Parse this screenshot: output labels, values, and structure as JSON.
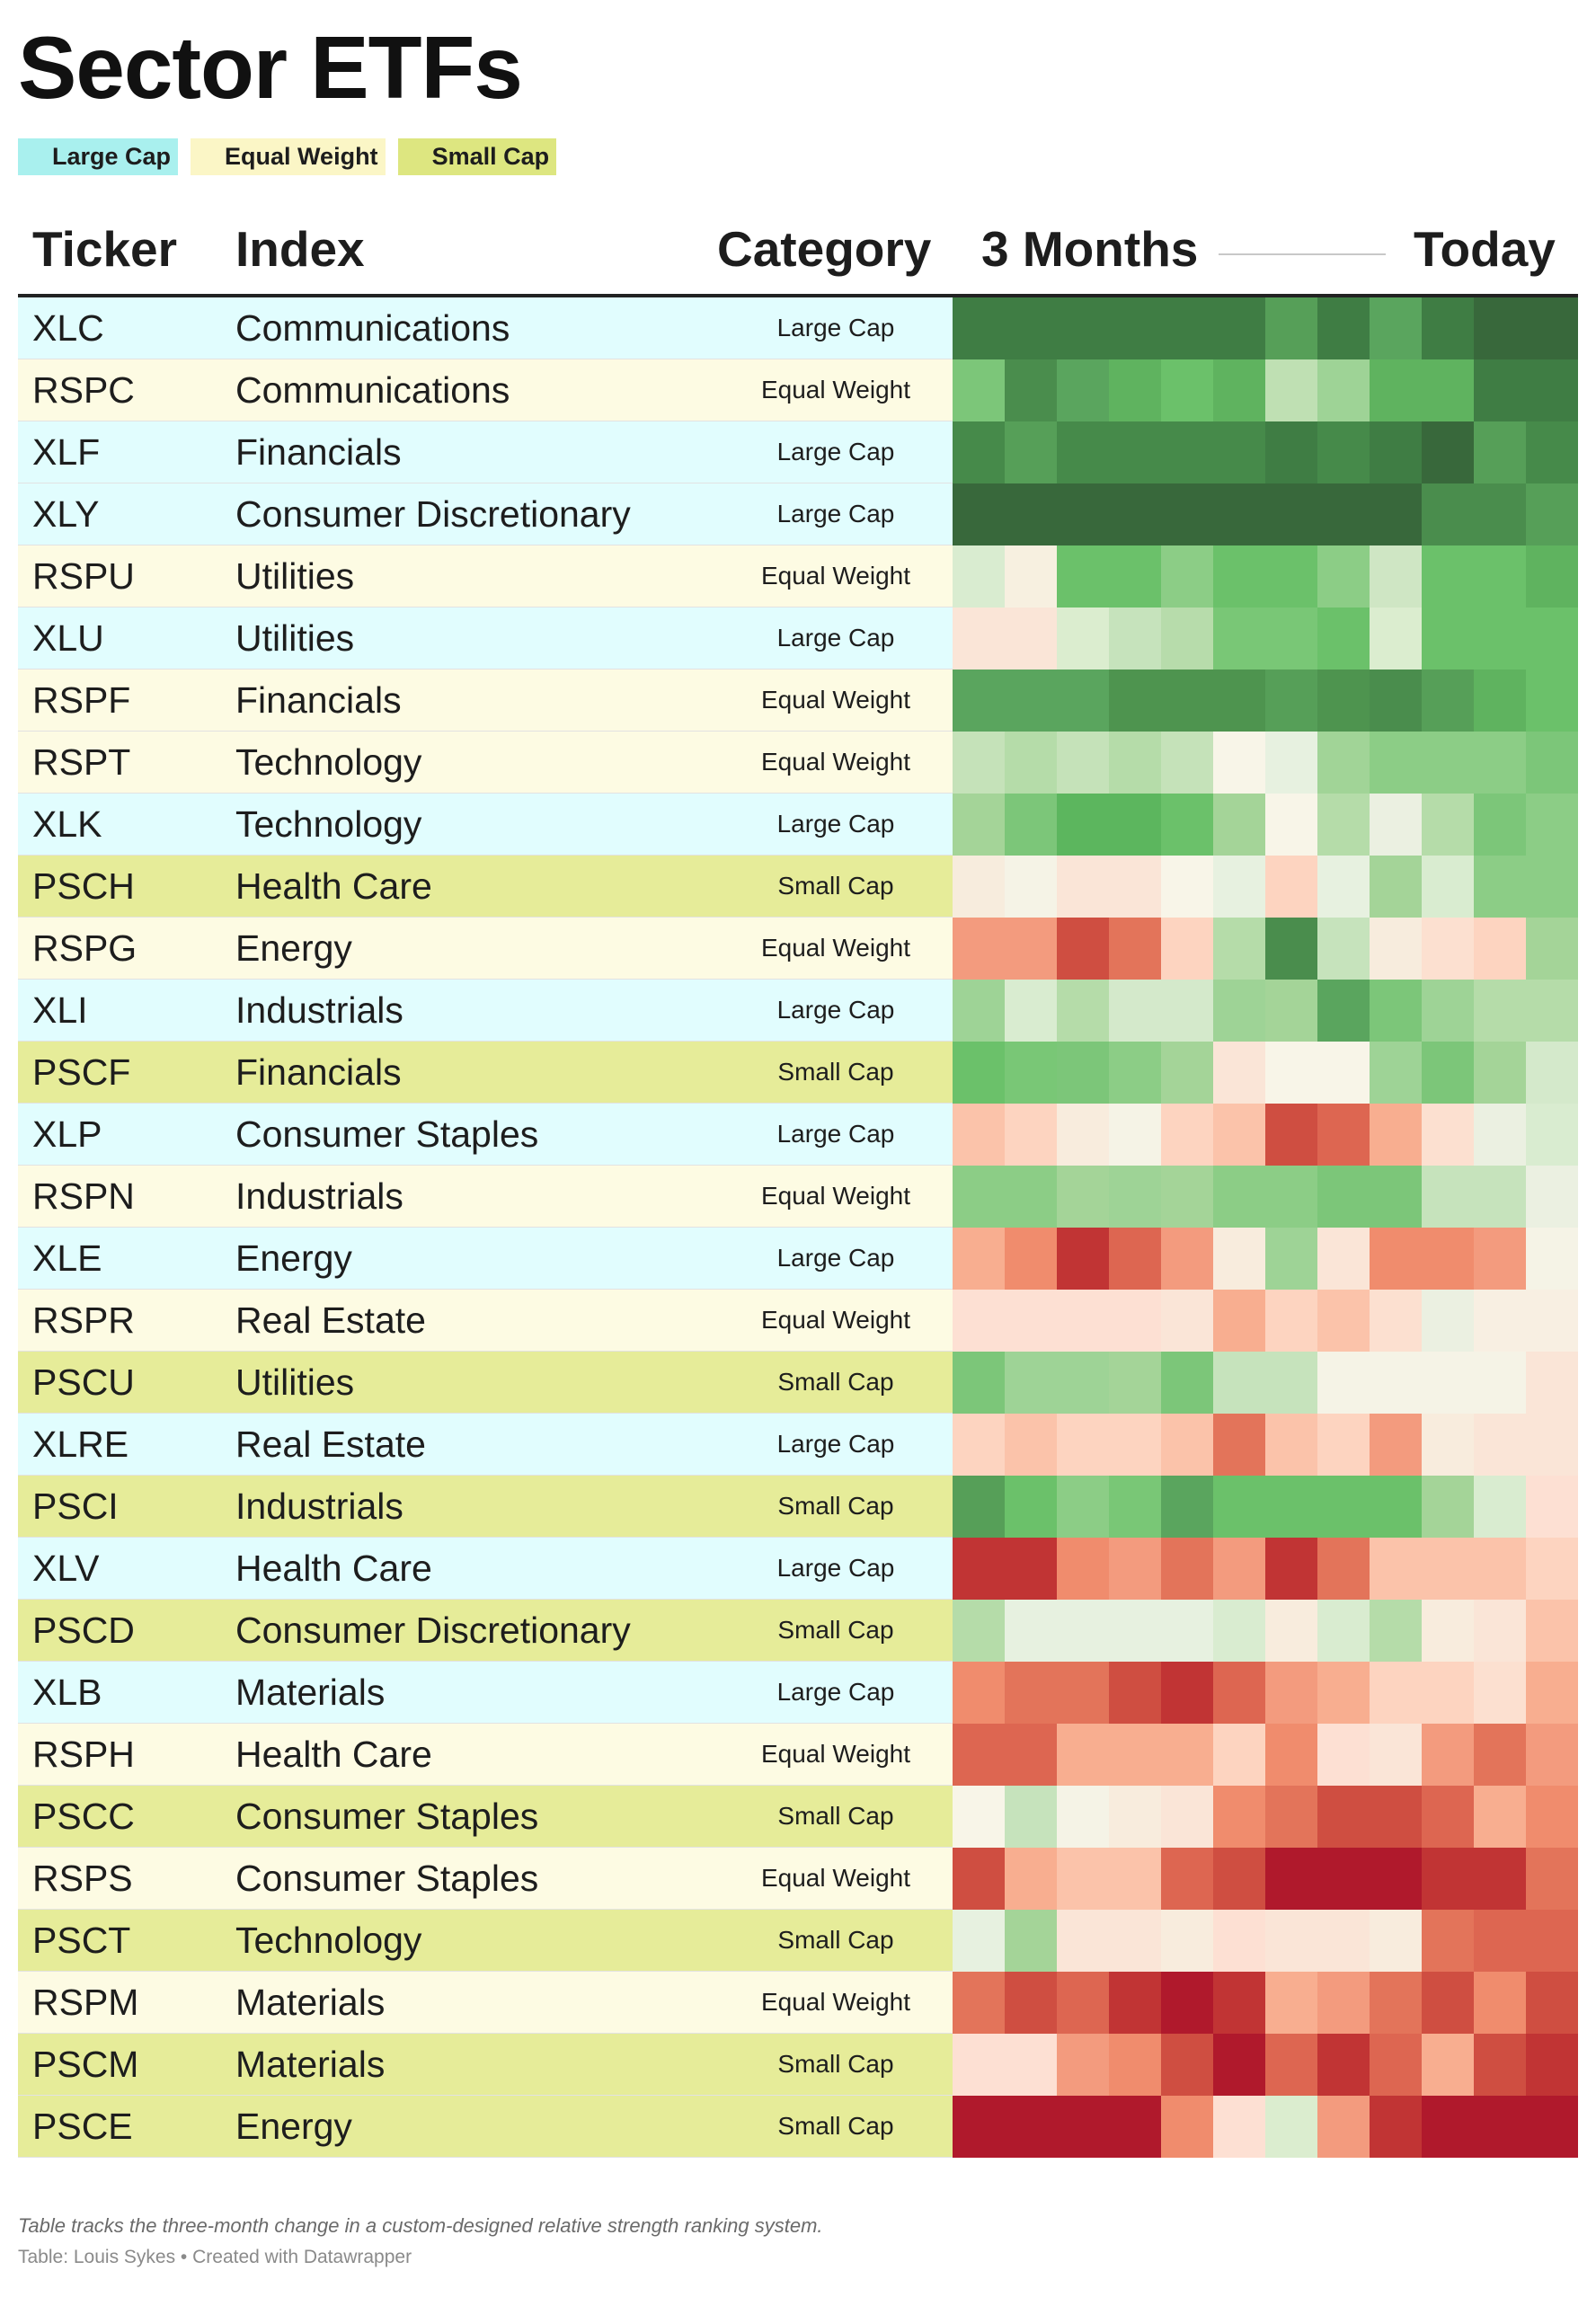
{
  "title": "Sector ETFs",
  "legend": [
    {
      "label": "Large Cap",
      "color": "#a9f0ee"
    },
    {
      "label": "Equal Weight",
      "color": "#fbf6c6"
    },
    {
      "label": "Small Cap",
      "color": "#dde680"
    }
  ],
  "headers": {
    "ticker": "Ticker",
    "index": "Index",
    "category": "Category",
    "start": "3 Months",
    "end": "Today"
  },
  "category_colors": {
    "Large Cap": "#e1fdfe",
    "Equal Weight": "#fdfbe3",
    "Small Cap": "#e6ec99"
  },
  "notes": "Table tracks the three-month change in a custom-designed relative strength ranking system.",
  "credit": "Table: Louis Sykes • Created with Datawrapper",
  "chart_data": {
    "type": "heatmap",
    "title": "Sector ETFs",
    "color_scale": "green = strong relative strength, red = weak relative strength",
    "columns_description": "12 periods from 3 Months ago to Today",
    "rows": [
      {
        "ticker": "XLC",
        "index": "Communications",
        "category": "Large Cap",
        "cells": [
          "#3f7d44",
          "#3f7d44",
          "#3f7d44",
          "#3f7d44",
          "#3f7d44",
          "#3f7d44",
          "#569f58",
          "#3f7d44",
          "#5aa55e",
          "#3f7d44",
          "#38683b",
          "#38683b"
        ]
      },
      {
        "ticker": "RSPC",
        "index": "Communications",
        "category": "Equal Weight",
        "cells": [
          "#7cc679",
          "#4a8d4d",
          "#5aa55e",
          "#5fb35f",
          "#6bc16a",
          "#5fb35f",
          "#bfe0b3",
          "#9ed396",
          "#5fb35f",
          "#5fb35f",
          "#3f7d44",
          "#3f7d44"
        ]
      },
      {
        "ticker": "XLF",
        "index": "Financials",
        "category": "Large Cap",
        "cells": [
          "#468a4a",
          "#569f58",
          "#468a4a",
          "#468a4a",
          "#468a4a",
          "#468a4a",
          "#3f7d44",
          "#468a4a",
          "#3f7d44",
          "#38683b",
          "#569f58",
          "#468a4a"
        ]
      },
      {
        "ticker": "XLY",
        "index": "Consumer Discretionary",
        "category": "Large Cap",
        "cells": [
          "#38683b",
          "#38683b",
          "#38683b",
          "#38683b",
          "#38683b",
          "#38683b",
          "#38683b",
          "#38683b",
          "#38683b",
          "#4a8d4d",
          "#4a8d4d",
          "#569f58"
        ]
      },
      {
        "ticker": "RSPU",
        "index": "Utilities",
        "category": "Equal Weight",
        "cells": [
          "#d9ecd0",
          "#f7f0e0",
          "#6bc16a",
          "#6bc16a",
          "#8ccd86",
          "#6bc16a",
          "#6bc16a",
          "#8ccd86",
          "#cfe6c4",
          "#6bc16a",
          "#6bc16a",
          "#5fb35f"
        ]
      },
      {
        "ticker": "XLU",
        "index": "Utilities",
        "category": "Large Cap",
        "cells": [
          "#fae5d7",
          "#fae5d7",
          "#dbedcf",
          "#c6e3bc",
          "#b7dcab",
          "#79c776",
          "#79c776",
          "#6bc16a",
          "#dbedcf",
          "#6bc16a",
          "#6bc16a",
          "#6bc16a"
        ]
      },
      {
        "ticker": "RSPF",
        "index": "Financials",
        "category": "Equal Weight",
        "cells": [
          "#5aa55e",
          "#5aa55e",
          "#5aa55e",
          "#4e944f",
          "#4e944f",
          "#4e944f",
          "#569f58",
          "#4e944f",
          "#4a8d4d",
          "#569f58",
          "#5fb35f",
          "#6bc16a"
        ]
      },
      {
        "ticker": "RSPT",
        "index": "Technology",
        "category": "Equal Weight",
        "cells": [
          "#c5e2b9",
          "#b5dca9",
          "#c5e2b9",
          "#b5dca9",
          "#c5e2b9",
          "#f8f5e8",
          "#e7f1e0",
          "#a1d497",
          "#8ccd86",
          "#8ccd86",
          "#8ccd86",
          "#7cc679"
        ]
      },
      {
        "ticker": "XLK",
        "index": "Technology",
        "category": "Large Cap",
        "cells": [
          "#a4d498",
          "#7cc679",
          "#5cb65e",
          "#5cb65e",
          "#6bc16a",
          "#a4d498",
          "#f8f5e8",
          "#b5dca9",
          "#ebf0e1",
          "#b5dca9",
          "#7cc679",
          "#8ccd86"
        ]
      },
      {
        "ticker": "PSCH",
        "index": "Health Care",
        "category": "Small Cap",
        "cells": [
          "#f7ecdd",
          "#f5f3e6",
          "#fae5d7",
          "#fae5d7",
          "#f8f5e8",
          "#e7f1e0",
          "#fdd4c0",
          "#e7f1e0",
          "#a4d498",
          "#d9ecd0",
          "#8ccd86",
          "#8ccd86"
        ]
      },
      {
        "ticker": "RSPG",
        "index": "Energy",
        "category": "Equal Weight",
        "cells": [
          "#f39b7e",
          "#f39b7e",
          "#cf4e41",
          "#e3745a",
          "#fdd4c0",
          "#b5dca9",
          "#4a8d4d",
          "#c6e3bc",
          "#f7ecdd",
          "#fce0d0",
          "#fdd4c0",
          "#a4d498"
        ]
      },
      {
        "ticker": "XLI",
        "index": "Industrials",
        "category": "Large Cap",
        "cells": [
          "#9ed396",
          "#d9ecd0",
          "#b5dca9",
          "#d4e9cb",
          "#d4e9cb",
          "#9ed396",
          "#a4d498",
          "#5aa55e",
          "#7cc679",
          "#9ed396",
          "#b5dca9",
          "#b5dca9"
        ]
      },
      {
        "ticker": "PSCF",
        "index": "Financials",
        "category": "Small Cap",
        "cells": [
          "#6bc16a",
          "#79c776",
          "#7cc679",
          "#8ccd86",
          "#a4d498",
          "#fae5d7",
          "#f8f5e8",
          "#f8f5e8",
          "#9ed396",
          "#7cc679",
          "#a4d498",
          "#d4e9cb"
        ]
      },
      {
        "ticker": "XLP",
        "index": "Consumer Staples",
        "category": "Large Cap",
        "cells": [
          "#fbc3aa",
          "#fdd4c0",
          "#f8ecdd",
          "#f5f3e6",
          "#fdd4c0",
          "#fbc3aa",
          "#cf4e41",
          "#dd6651",
          "#f8ae90",
          "#fce0d0",
          "#ebf0e1",
          "#d9ecd0"
        ]
      },
      {
        "ticker": "RSPN",
        "index": "Industrials",
        "category": "Equal Weight",
        "cells": [
          "#8ccd86",
          "#8ccd86",
          "#a4d498",
          "#9ed396",
          "#a4d498",
          "#8ccd86",
          "#8ccd86",
          "#7cc679",
          "#7cc679",
          "#c6e3bc",
          "#c6e3bc",
          "#ebf0e1"
        ]
      },
      {
        "ticker": "XLE",
        "index": "Energy",
        "category": "Large Cap",
        "cells": [
          "#f8ae90",
          "#f08c6d",
          "#c13434",
          "#dd6651",
          "#f39b7e",
          "#f8ecdd",
          "#9ed396",
          "#fae5d7",
          "#f08c6d",
          "#f08c6d",
          "#f39b7e",
          "#f5f3e6"
        ]
      },
      {
        "ticker": "RSPR",
        "index": "Real Estate",
        "category": "Equal Weight",
        "cells": [
          "#fde0d3",
          "#fde0d3",
          "#fde0d3",
          "#fde0d3",
          "#fae5d7",
          "#f8ae90",
          "#fdd4c0",
          "#fbc3aa",
          "#fce0d0",
          "#ebf0e1",
          "#f8efe2",
          "#f8efe2"
        ]
      },
      {
        "ticker": "PSCU",
        "index": "Utilities",
        "category": "Small Cap",
        "cells": [
          "#7cc679",
          "#9ed396",
          "#9ed396",
          "#a4d498",
          "#7cc679",
          "#c6e3bc",
          "#c6e3bc",
          "#f5f3e6",
          "#f5f3e6",
          "#f5f3e6",
          "#f5f3e6",
          "#fae5d7"
        ]
      },
      {
        "ticker": "XLRE",
        "index": "Real Estate",
        "category": "Large Cap",
        "cells": [
          "#fdd4c0",
          "#fbc3aa",
          "#fdd4c0",
          "#fdd4c0",
          "#fbc3aa",
          "#e3745a",
          "#fbc3aa",
          "#fdd4c0",
          "#f39b7e",
          "#f8ecdd",
          "#fae5d7",
          "#fae5d7"
        ]
      },
      {
        "ticker": "PSCI",
        "index": "Industrials",
        "category": "Small Cap",
        "cells": [
          "#569f58",
          "#6bc16a",
          "#8ccd86",
          "#79c776",
          "#5aa55e",
          "#6bc16a",
          "#6bc16a",
          "#6bc16a",
          "#6bc16a",
          "#a4d498",
          "#d9ecd0",
          "#fde0d3"
        ]
      },
      {
        "ticker": "XLV",
        "index": "Health Care",
        "category": "Large Cap",
        "cells": [
          "#c13434",
          "#c13434",
          "#f08c6d",
          "#f39b7e",
          "#e3745a",
          "#f39b7e",
          "#c13434",
          "#e3745a",
          "#fbc3aa",
          "#fbc3aa",
          "#fbc3aa",
          "#fdd4c0"
        ]
      },
      {
        "ticker": "PSCD",
        "index": "Consumer Discretionary",
        "category": "Small Cap",
        "cells": [
          "#b5dca9",
          "#e7f1e0",
          "#e7f1e0",
          "#e7f1e0",
          "#e7f1e0",
          "#d9ecd0",
          "#f8ecdd",
          "#d9ecd0",
          "#b5dca9",
          "#f8ecdd",
          "#fae5d7",
          "#fbc3aa"
        ]
      },
      {
        "ticker": "XLB",
        "index": "Materials",
        "category": "Large Cap",
        "cells": [
          "#f08c6d",
          "#e3745a",
          "#e3745a",
          "#cf4e41",
          "#c13434",
          "#dd6651",
          "#f39b7e",
          "#f8ae90",
          "#fdd4c0",
          "#fdd4c0",
          "#fce0d0",
          "#f8ae90"
        ]
      },
      {
        "ticker": "RSPH",
        "index": "Health Care",
        "category": "Equal Weight",
        "cells": [
          "#dd6651",
          "#dd6651",
          "#f8ae90",
          "#f8ae90",
          "#f8ae90",
          "#fdd4c0",
          "#f08c6d",
          "#fde0d3",
          "#fae5d7",
          "#f39b7e",
          "#e3745a",
          "#f39b7e"
        ]
      },
      {
        "ticker": "PSCC",
        "index": "Consumer Staples",
        "category": "Small Cap",
        "cells": [
          "#f8f5e8",
          "#c6e3bc",
          "#f5f3e6",
          "#f8ecdd",
          "#fae5d7",
          "#f08c6d",
          "#e3745a",
          "#cf4e41",
          "#cf4e41",
          "#dd6651",
          "#f8ae90",
          "#f08c6d"
        ]
      },
      {
        "ticker": "RSPS",
        "index": "Consumer Staples",
        "category": "Equal Weight",
        "cells": [
          "#cf4e41",
          "#f8ae90",
          "#fbc3aa",
          "#fbc3aa",
          "#dd6651",
          "#cf4e41",
          "#b0192c",
          "#b0192c",
          "#b0192c",
          "#c13434",
          "#c13434",
          "#e3745a"
        ]
      },
      {
        "ticker": "PSCT",
        "index": "Technology",
        "category": "Small Cap",
        "cells": [
          "#e7f1e0",
          "#a4d498",
          "#fae5d7",
          "#fae5d7",
          "#f8ecdd",
          "#fde0d3",
          "#fae5d7",
          "#fae5d7",
          "#f8ecdd",
          "#e3745a",
          "#dd6651",
          "#dd6651"
        ]
      },
      {
        "ticker": "RSPM",
        "index": "Materials",
        "category": "Equal Weight",
        "cells": [
          "#e3745a",
          "#cf4e41",
          "#dd6651",
          "#c13434",
          "#b0192c",
          "#c13434",
          "#f8ae90",
          "#f39b7e",
          "#e3745a",
          "#cf4e41",
          "#f08c6d",
          "#cf4e41"
        ]
      },
      {
        "ticker": "PSCM",
        "index": "Materials",
        "category": "Small Cap",
        "cells": [
          "#fde0d3",
          "#fde0d3",
          "#f39b7e",
          "#f08c6d",
          "#cf4e41",
          "#b0192c",
          "#dd6651",
          "#c13434",
          "#dd6651",
          "#f8ae90",
          "#cf4e41",
          "#c13434"
        ]
      },
      {
        "ticker": "PSCE",
        "index": "Energy",
        "category": "Small Cap",
        "cells": [
          "#b0192c",
          "#b0192c",
          "#b0192c",
          "#b0192c",
          "#f08c6d",
          "#fde0d3",
          "#dbedcf",
          "#f39b7e",
          "#c13434",
          "#b0192c",
          "#b0192c",
          "#b0192c"
        ]
      }
    ]
  }
}
